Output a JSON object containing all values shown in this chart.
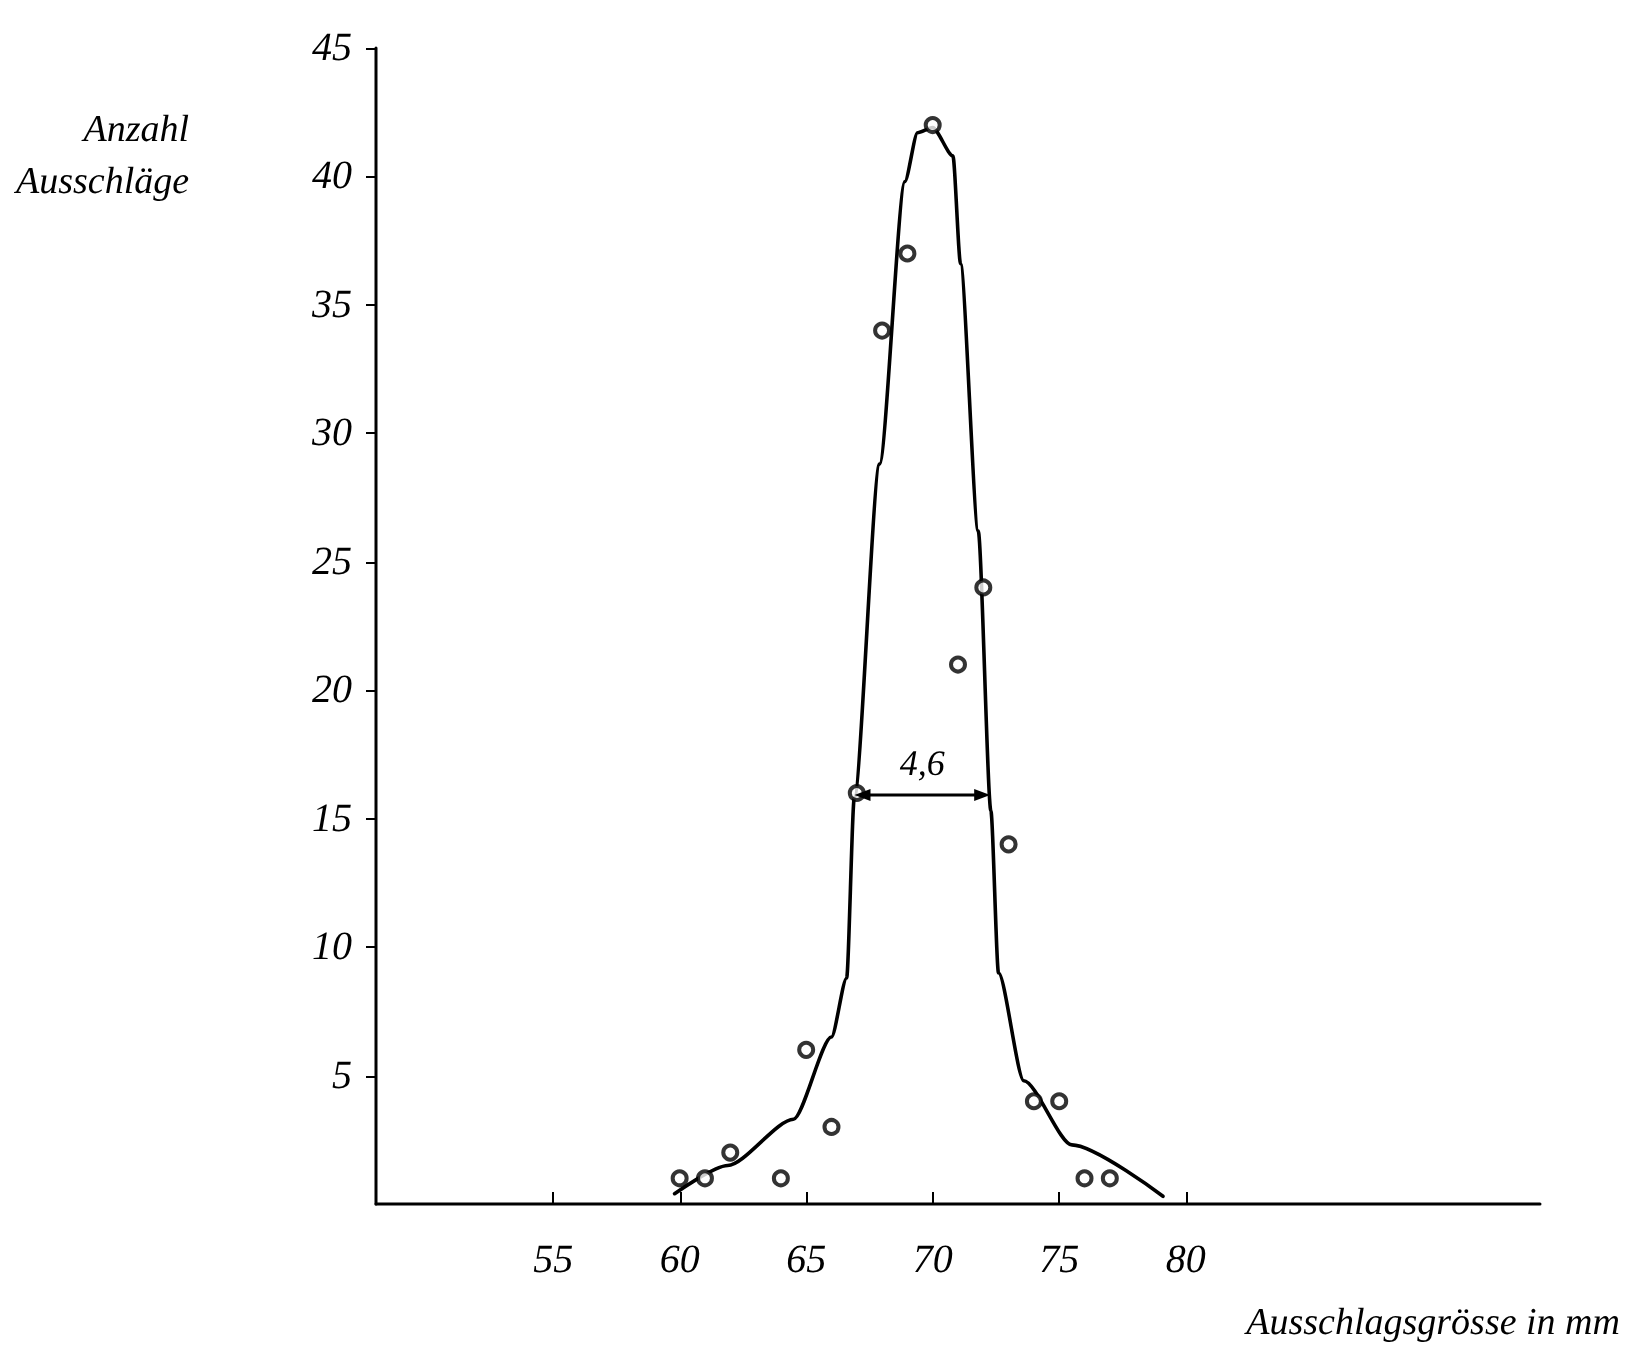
{
  "chart_data": {
    "type": "scatter",
    "xlabel": "Ausschlagsgrösse in mm",
    "ylabel": "Anzahl\nAusschläge",
    "xlim": [
      48,
      94
    ],
    "xticks": [
      55,
      60,
      65,
      70,
      75,
      80
    ],
    "ylim": [
      0,
      45
    ],
    "yticks": [
      5,
      10,
      15,
      20,
      25,
      30,
      35,
      40,
      45
    ],
    "marker": "circle",
    "annotations": [
      "4,6"
    ],
    "series": [
      {
        "type": "scatter",
        "color": "#000000",
        "x": [
          60,
          61,
          62,
          64,
          65,
          66,
          67,
          68,
          69,
          70,
          71,
          72,
          73,
          74,
          75,
          76,
          77
        ],
        "values": [
          1,
          1,
          2,
          1,
          6,
          3,
          16,
          34,
          37,
          42,
          21,
          24,
          14,
          4,
          4,
          1,
          1
        ]
      },
      {
        "type": "line",
        "color": "#000000",
        "marker": "none",
        "line_style": "solid",
        "x": [
          59.8,
          61.9,
          64.5,
          66,
          66.6,
          66.9,
          67.9,
          68.9,
          69.4,
          70,
          70.8,
          71.1,
          71.8,
          72.3,
          72.6,
          73.6,
          75.5,
          79.1
        ],
        "values": [
          0.4,
          1.5,
          3.3,
          6.5,
          8.8,
          15.8,
          28.8,
          39.8,
          41.7,
          41.9,
          40.8,
          36.6,
          26.2,
          15.3,
          9,
          4.8,
          2.3,
          0.3
        ]
      }
    ]
  }
}
